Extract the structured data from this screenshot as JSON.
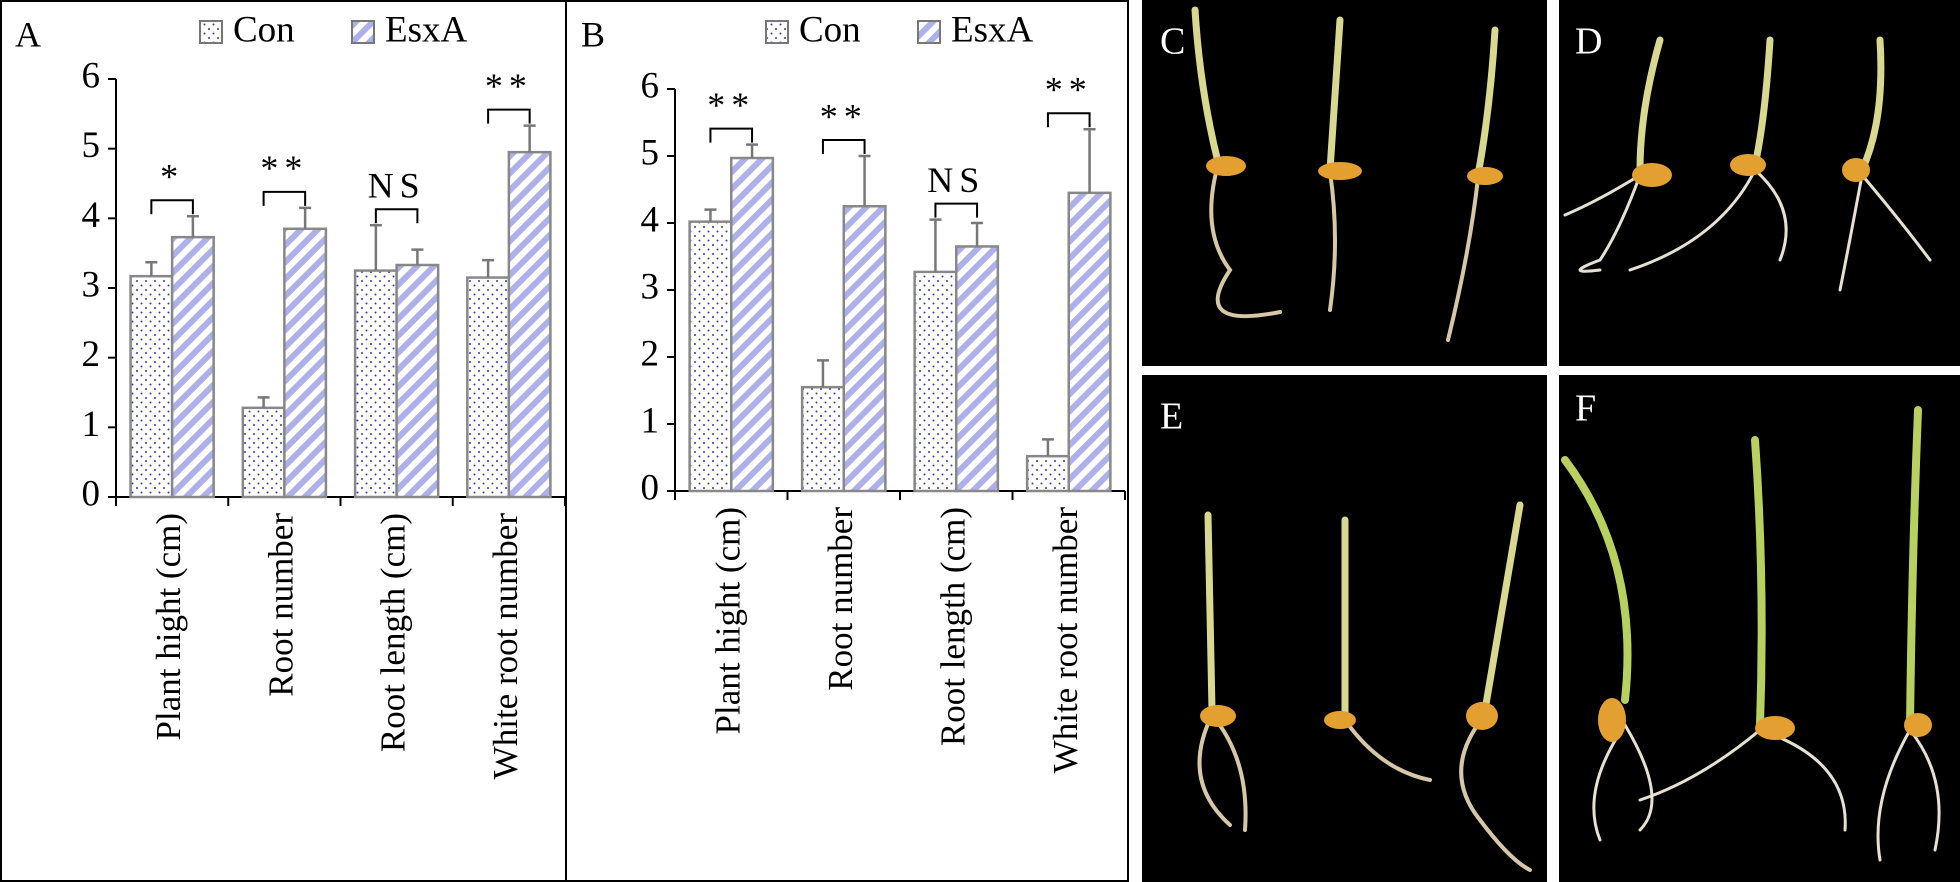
{
  "chart_data": [
    {
      "type": "bar",
      "label": "A",
      "categories": [
        "Plant hight (cm)",
        "Root number",
        "Root length (cm)",
        "White root number"
      ],
      "series": [
        {
          "name": "Con",
          "color": "#3b3ba8",
          "values": [
            3.17,
            1.28,
            3.25,
            3.15
          ],
          "errors": [
            0.2,
            0.15,
            0.65,
            0.25
          ]
        },
        {
          "name": "EsxA",
          "color": "#aeb0ea",
          "values": [
            3.73,
            3.85,
            3.33,
            4.95
          ],
          "errors": [
            0.3,
            0.3,
            0.22,
            0.38
          ]
        }
      ],
      "annotations": [
        "*",
        "**",
        "NS",
        "**"
      ],
      "ylim": [
        0,
        6
      ],
      "yticks": [
        0,
        1,
        2,
        3,
        4,
        5,
        6
      ]
    },
    {
      "type": "bar",
      "label": "B",
      "categories": [
        "Plant hight (cm)",
        "Root number",
        "Root length (cm)",
        "White root number"
      ],
      "series": [
        {
          "name": "Con",
          "color": "#3b3ba8",
          "values": [
            4.02,
            1.55,
            3.27,
            0.52
          ],
          "errors": [
            0.18,
            0.4,
            0.78,
            0.25
          ]
        },
        {
          "name": "EsxA",
          "color": "#aeb0ea",
          "values": [
            4.97,
            4.25,
            3.65,
            4.45
          ],
          "errors": [
            0.2,
            0.75,
            0.35,
            0.95
          ]
        }
      ],
      "annotations": [
        "**",
        "**",
        "NS",
        "**"
      ],
      "ylim": [
        0,
        6
      ],
      "yticks": [
        0,
        1,
        2,
        3,
        4,
        5,
        6
      ]
    }
  ],
  "photos": {
    "labels": [
      "C",
      "D",
      "E",
      "F"
    ]
  }
}
